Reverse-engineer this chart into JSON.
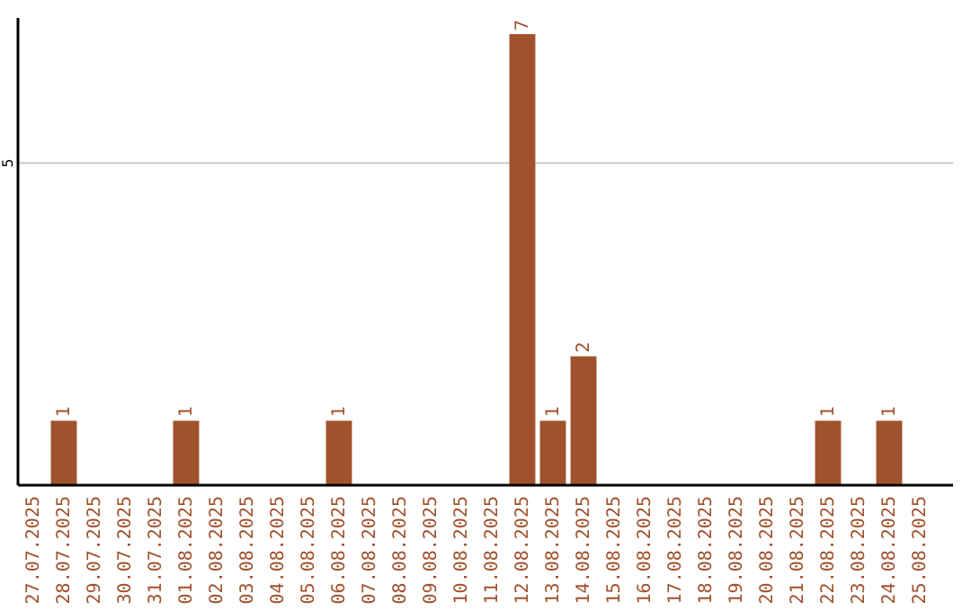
{
  "chart_data": {
    "type": "bar",
    "categories": [
      "27.07.2025",
      "28.07.2025",
      "29.07.2025",
      "30.07.2025",
      "31.07.2025",
      "01.08.2025",
      "02.08.2025",
      "03.08.2025",
      "04.08.2025",
      "05.08.2025",
      "06.08.2025",
      "07.08.2025",
      "08.08.2025",
      "09.08.2025",
      "10.08.2025",
      "11.08.2025",
      "12.08.2025",
      "13.08.2025",
      "14.08.2025",
      "15.08.2025",
      "16.08.2025",
      "17.08.2025",
      "18.08.2025",
      "19.08.2025",
      "20.08.2025",
      "21.08.2025",
      "22.08.2025",
      "23.08.2025",
      "24.08.2025",
      "25.08.2025"
    ],
    "values": [
      0,
      1,
      0,
      0,
      0,
      1,
      0,
      0,
      0,
      0,
      1,
      0,
      0,
      0,
      0,
      0,
      7,
      1,
      2,
      0,
      0,
      0,
      0,
      0,
      0,
      0,
      1,
      0,
      1,
      0
    ],
    "value_labels": [
      null,
      "1",
      null,
      null,
      null,
      "1",
      null,
      null,
      null,
      null,
      "1",
      null,
      null,
      null,
      null,
      null,
      "7",
      "1",
      "2",
      null,
      null,
      null,
      null,
      null,
      null,
      null,
      "1",
      null,
      "1",
      null
    ],
    "color": "#a0522d",
    "ylim": [
      0,
      7.25
    ],
    "yticks": [
      5
    ],
    "grid": "y"
  }
}
